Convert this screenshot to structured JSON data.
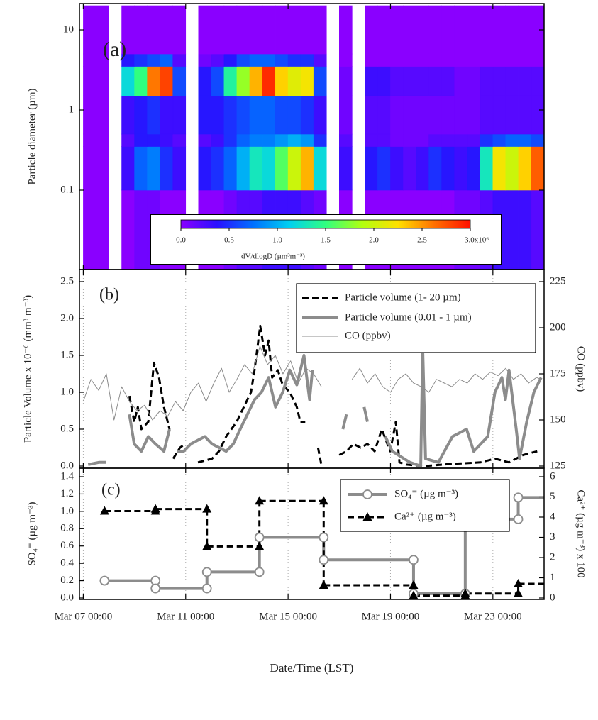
{
  "chart_data": [
    {
      "type": "heatmap",
      "panel_label": "(a)",
      "ylabel": "Particle diameter (µm)",
      "ylog": true,
      "ylim": [
        0.01,
        20
      ],
      "yticks": [
        0.1,
        1,
        10
      ],
      "x_bins": [
        7.0,
        7.5,
        8.0,
        8.5,
        9.0,
        9.5,
        10.0,
        10.5,
        11.0,
        11.5,
        12.0,
        12.5,
        13.0,
        13.5,
        14.0,
        14.5,
        15.0,
        15.5,
        16.0,
        16.5,
        17.0,
        17.5,
        18.0,
        18.5,
        19.0,
        19.5,
        20.0,
        20.5,
        21.0,
        21.5,
        22.0,
        22.5,
        23.0,
        23.5,
        24.0,
        24.5,
        25.0
      ],
      "y_bins": [
        0.01,
        0.1,
        0.35,
        0.5,
        1.5,
        3.5,
        5,
        20
      ],
      "values": [
        [
          0,
          0,
          null,
          0,
          100000,
          100000,
          0,
          0,
          null,
          0,
          0,
          100000,
          200000,
          200000,
          300000,
          300000,
          300000,
          200000,
          100000,
          null,
          0,
          null,
          0,
          0,
          0,
          0,
          0,
          0,
          0,
          100000,
          100000,
          200000,
          300000,
          300000,
          300000,
          200000
        ],
        [
          0,
          0,
          null,
          300000,
          700000,
          800000,
          500000,
          300000,
          null,
          400000,
          500000,
          700000,
          1000000,
          1300000,
          1200000,
          1600000,
          2000000,
          2400000,
          1200000,
          null,
          300000,
          null,
          400000,
          500000,
          300000,
          200000,
          300000,
          500000,
          400000,
          300000,
          400000,
          1300000,
          2200000,
          2000000,
          2300000,
          2700000
        ],
        [
          0,
          0,
          null,
          200000,
          400000,
          400000,
          300000,
          200000,
          null,
          200000,
          300000,
          500000,
          700000,
          800000,
          800000,
          900000,
          1000000,
          900000,
          500000,
          null,
          200000,
          null,
          200000,
          200000,
          100000,
          100000,
          100000,
          200000,
          200000,
          200000,
          200000,
          500000,
          600000,
          700000,
          700000,
          600000
        ],
        [
          0,
          0,
          null,
          300000,
          400000,
          500000,
          300000,
          300000,
          null,
          400000,
          400000,
          500000,
          600000,
          700000,
          700000,
          600000,
          600000,
          500000,
          300000,
          null,
          100000,
          null,
          200000,
          200000,
          100000,
          100000,
          100000,
          100000,
          100000,
          100000,
          100000,
          200000,
          200000,
          200000,
          200000,
          200000
        ],
        [
          0,
          0,
          null,
          1200000,
          1500000,
          2600000,
          2800000,
          600000,
          null,
          400000,
          600000,
          1400000,
          1800000,
          2400000,
          2900000,
          2300000,
          2100000,
          2200000,
          600000,
          null,
          100000,
          null,
          300000,
          300000,
          200000,
          200000,
          200000,
          200000,
          200000,
          100000,
          100000,
          200000,
          200000,
          200000,
          200000,
          200000
        ],
        [
          0,
          0,
          null,
          400000,
          500000,
          600000,
          700000,
          200000,
          null,
          100000,
          200000,
          400000,
          600000,
          700000,
          700000,
          600000,
          500000,
          500000,
          200000,
          null,
          0,
          null,
          0,
          0,
          0,
          0,
          0,
          0,
          0,
          0,
          0,
          0,
          0,
          0,
          0,
          0
        ],
        [
          0,
          0,
          null,
          0,
          0,
          0,
          0,
          0,
          null,
          0,
          0,
          0,
          0,
          0,
          0,
          0,
          0,
          0,
          0,
          null,
          0,
          null,
          0,
          0,
          0,
          0,
          0,
          0,
          0,
          0,
          0,
          0,
          0,
          0,
          0,
          0
        ]
      ],
      "colorbar": {
        "label": "dV/dlogD (µm³m⁻³)",
        "clim": [
          0,
          3000000
        ],
        "ticks": [
          {
            "value": 0,
            "label": "0.0"
          },
          {
            "value": 500000,
            "label": "0.5"
          },
          {
            "value": 1000000,
            "label": "1.0"
          },
          {
            "value": 1500000,
            "label": "1.5"
          },
          {
            "value": 2000000,
            "label": "2.0"
          },
          {
            "value": 2500000,
            "label": "2.5"
          },
          {
            "value": 3000000,
            "label": "3.0x10⁶"
          }
        ],
        "colormap": [
          "#8a00ff",
          "#2a10ff",
          "#0070ff",
          "#00d0f0",
          "#30ff80",
          "#b0ff10",
          "#ffe000",
          "#ff7000",
          "#ff1000"
        ]
      }
    },
    {
      "type": "line",
      "panel_label": "(b)",
      "ylabel": "Particle Volume x 10⁻⁶ (mm³ m⁻³)",
      "y2label": "CO (ppbv)",
      "ylim": [
        0,
        2.5
      ],
      "yticks": [
        {
          "value": 0,
          "label": "0.0"
        },
        0.5,
        {
          "value": 1,
          "label": "1.0"
        },
        1.5,
        {
          "value": 2,
          "label": "2.0"
        },
        2.5
      ],
      "y2lim": [
        125,
        225
      ],
      "y2ticks": [
        125,
        150,
        175,
        200,
        225
      ],
      "grid": true,
      "legend": "upper right",
      "series": [
        {
          "name": "Particle volume (1- 20 µm)",
          "color": "#000000",
          "dash": true,
          "x": [
            8.8,
            8.99,
            9.13,
            9.27,
            9.54,
            9.76,
            9.96,
            10.15,
            10.37,
            10.44,
            10.51,
            10.78,
            10.98,
            11.2,
            11.48,
            12.03,
            12.3,
            12.58,
            12.99,
            13.27,
            13.55,
            13.69,
            13.91,
            14.1,
            14.24,
            14.38,
            14.6,
            14.79,
            15.07,
            15.34,
            15.48,
            15.67,
            16.0,
            16.17,
            16.31,
            16.7,
            17.0,
            17.28,
            17.55,
            17.83,
            18.1,
            18.38,
            18.66,
            18.88,
            18.99,
            19.21,
            19.35,
            19.62,
            20.31,
            21.42,
            22.52,
            23.08,
            23.63,
            24.18,
            24.73
          ],
          "values": [
            0.95,
            0.6,
            0.8,
            0.5,
            0.6,
            1.4,
            1.2,
            0.8,
            0.5,
            null,
            0.1,
            0.25,
            0.3,
            null,
            0.05,
            0.1,
            0.2,
            0.4,
            0.6,
            0.8,
            1.0,
            1.3,
            1.9,
            1.5,
            1.7,
            1.2,
            1.3,
            1.1,
            1.0,
            0.8,
            0.6,
            0.6,
            null,
            0.25,
            0.0,
            null,
            0.15,
            0.2,
            0.3,
            0.25,
            0.3,
            0.2,
            0.5,
            0.3,
            0.2,
            0.6,
            0.05,
            0.02,
            0.0,
            0.03,
            0.05,
            0.1,
            0.05,
            0.15,
            0.2
          ]
        },
        {
          "name": "Particle volume (0.01 - 1 µm)",
          "color": "#8c8c8c",
          "dash": false,
          "x": [
            7.19,
            7.61,
            7.88,
            8.3,
            8.8,
            8.99,
            9.27,
            9.54,
            9.82,
            10.15,
            10.37,
            10.5,
            10.65,
            10.92,
            11.2,
            11.75,
            12.03,
            12.58,
            12.86,
            13.13,
            13.41,
            13.69,
            13.96,
            14.24,
            14.51,
            14.79,
            15.07,
            15.34,
            15.62,
            15.84,
            15.95,
            16.5,
            17.14,
            17.28,
            17.6,
            17.97,
            18.1,
            18.5,
            18.8,
            19.07,
            19.76,
            20.18,
            20.26,
            20.37,
            20.87,
            21.42,
            21.97,
            22.25,
            22.8,
            23.08,
            23.35,
            23.49,
            23.63,
            23.91,
            24.04,
            24.32,
            24.6,
            24.88
          ],
          "values": [
            0.02,
            0.05,
            0.05,
            null,
            0.7,
            0.3,
            0.2,
            0.4,
            0.3,
            0.2,
            0.5,
            null,
            0.2,
            0.2,
            0.3,
            0.4,
            0.3,
            0.2,
            0.3,
            0.5,
            0.7,
            0.9,
            1.0,
            1.2,
            0.8,
            1.0,
            1.3,
            1.1,
            1.5,
            0.9,
            1.3,
            null,
            0.5,
            0.7,
            null,
            0.8,
            0.6,
            null,
            0.4,
            0.2,
            0.05,
            0.0,
            1.6,
            0.1,
            0.05,
            0.4,
            0.5,
            0.2,
            0.4,
            1.0,
            1.2,
            0.9,
            1.3,
            0.5,
            0.1,
            0.6,
            1.0,
            1.2
          ]
        },
        {
          "name": "CO (ppbv)",
          "color": "#8c8c8c",
          "dash": false,
          "axis": "y2",
          "x": [
            7.0,
            7.3,
            7.6,
            7.9,
            8.2,
            8.5,
            8.8,
            9.1,
            9.4,
            9.7,
            10.0,
            10.3,
            10.6,
            10.9,
            11.2,
            11.5,
            11.8,
            12.1,
            12.4,
            12.7,
            13.0,
            13.3,
            13.6,
            13.9,
            14.2,
            14.5,
            14.8,
            15.1,
            15.4,
            15.7,
            16.0,
            16.3,
            16.9,
            17.5,
            17.8,
            18.1,
            18.4,
            18.7,
            19.0,
            19.3,
            19.6,
            19.9,
            20.2,
            20.5,
            20.8,
            21.1,
            21.4,
            21.7,
            22.0,
            22.3,
            22.6,
            22.9,
            23.2,
            23.5,
            23.8,
            24.1,
            24.4,
            24.7,
            24.9
          ],
          "values": [
            160,
            172,
            166,
            175,
            150,
            168,
            160,
            155,
            158,
            150,
            155,
            152,
            160,
            155,
            165,
            170,
            160,
            170,
            178,
            165,
            172,
            180,
            175,
            190,
            180,
            185,
            175,
            182,
            170,
            178,
            175,
            168,
            null,
            172,
            178,
            170,
            175,
            168,
            165,
            172,
            175,
            170,
            168,
            165,
            172,
            170,
            168,
            172,
            170,
            175,
            172,
            176,
            174,
            178,
            172,
            175,
            170,
            173,
            172
          ]
        }
      ]
    },
    {
      "type": "step",
      "panel_label": "(c)",
      "ylabel": "SO₄⁼ (µg m⁻³)",
      "y2label": "Ca²⁺ (µg m⁻³) x 100",
      "xlabel": "Date/Time (LST)",
      "xlim": [
        6.85,
        25.0
      ],
      "xticks": [
        {
          "value": 7,
          "label": "Mar 07 00:00"
        },
        {
          "value": 11,
          "label": "Mar 11 00:00"
        },
        {
          "value": 15,
          "label": "Mar 15 00:00"
        },
        {
          "value": 19,
          "label": "Mar 19 00:00"
        },
        {
          "value": 23,
          "label": "Mar 23 00:00"
        }
      ],
      "ylim": [
        0,
        1.4
      ],
      "yticks": [
        {
          "value": 0,
          "label": "0.0"
        },
        0.2,
        0.4,
        0.6,
        0.8,
        {
          "value": 1,
          "label": "1.0"
        },
        1.2,
        1.4
      ],
      "y2lim": [
        0,
        6
      ],
      "y2ticks": [
        0,
        1,
        2,
        3,
        4,
        5,
        6
      ],
      "grid": true,
      "legend": "upper right",
      "series": [
        {
          "name": "SO₄⁼ (µg m⁻³)",
          "color": "#8c8c8c",
          "dash": false,
          "marker": "circle",
          "x": [
            7.83,
            9.82,
            11.83,
            13.88,
            16.39,
            19.9,
            21.92,
            23.99
          ],
          "values": [
            0.2,
            0.11,
            0.3,
            0.7,
            0.44,
            0.05,
            0.91,
            1.16
          ]
        },
        {
          "name": "Ca²⁺ (µg m⁻³)",
          "color": "#000000",
          "dash": true,
          "marker": "triangle",
          "axis": "y2",
          "x": [
            7.83,
            9.82,
            11.83,
            13.88,
            16.39,
            19.9,
            21.92,
            23.99
          ],
          "values": [
            4.3,
            4.4,
            2.55,
            4.8,
            0.63,
            0.12,
            0.22,
            0.7
          ]
        }
      ]
    }
  ]
}
